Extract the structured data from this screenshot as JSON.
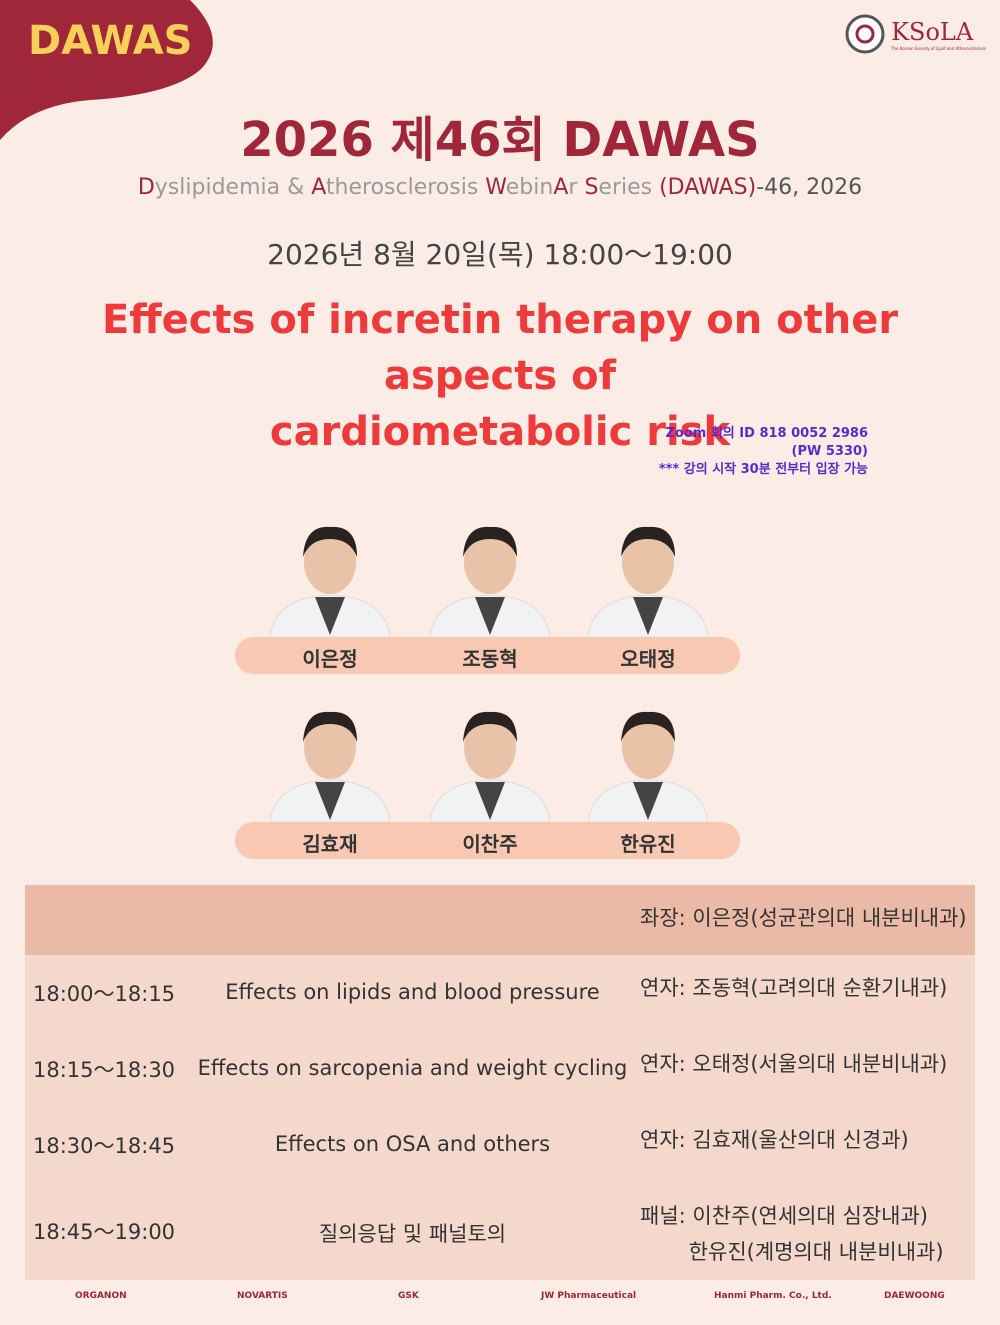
{
  "header": {
    "badge": "DAWAS",
    "logo": "KSoLA",
    "logo_sub": "The Korean Society of Lipid and Atherosclerosis"
  },
  "title": "2026 제46회 DAWAS",
  "subtitle": [
    "D",
    "yslipidemia & ",
    "A",
    "therosclerosis ",
    "W",
    "ebin",
    "A",
    "r ",
    "S",
    "eries ",
    "(DAWAS)",
    "-46, 2026"
  ],
  "date": "2026년 8월 20일(목) 18:00～19:00",
  "topic": [
    "Effects of incretin therapy on other aspects of",
    "cardiometabolic risk"
  ],
  "zoom": [
    "Zoom 회의 ID 818 0052 2986",
    "(PW 5330)",
    "*** 강의 시작 30분 전부터 입장 가능"
  ],
  "speakers": [
    [
      "이은정",
      "조동혁",
      "오태정"
    ],
    [
      "김효재",
      "이찬주",
      "한유진"
    ]
  ],
  "schedule": {
    "chair": "좌장: 이은정(성균관의대 내분비내과)",
    "rows": [
      {
        "time": "18:00～18:15",
        "topic": "Effects on lipids and blood pressure",
        "speaker": [
          "연자: 조동혁(고려의대 순환기내과)"
        ]
      },
      {
        "time": "18:15～18:30",
        "topic": "Effects on sarcopenia and weight cycling",
        "speaker": [
          "연자: 오태정(서울의대 내분비내과)"
        ]
      },
      {
        "time": "18:30～18:45",
        "topic": "Effects on OSA and others",
        "speaker": [
          "연자: 김효재(울산의대 신경과)"
        ]
      },
      {
        "time": "18:45～19:00",
        "topic": "질의응답 및 패널토의",
        "speaker": [
          "패널: 이찬주(연세의대 심장내과)",
          "　　 한유진(계명의대 내분비내과)"
        ]
      }
    ]
  },
  "sponsors": [
    "ORGANON",
    "NOVARTIS",
    "GSK",
    "JW Pharmaceutical",
    "Hanmi Pharm. Co., Ltd.",
    "DAEWOONG"
  ]
}
